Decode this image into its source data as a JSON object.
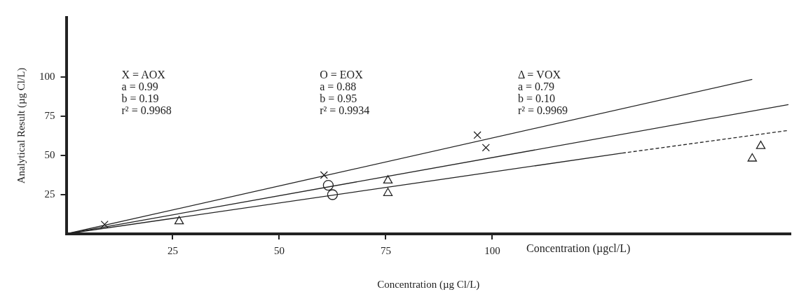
{
  "chart_data": {
    "type": "scatter",
    "xlabel": "Concentration (µg Cl/L)",
    "ylabel": "Analytical Result (µg Cl/L)",
    "xlim": [
      0,
      170
    ],
    "ylim": [
      0,
      138
    ],
    "xticks": [
      25,
      50,
      75,
      100
    ],
    "yticks": [
      25,
      50,
      75,
      100
    ],
    "grid": false,
    "legend": false,
    "annotations": [
      "X = AOX\na = 0.99\nb = 0.19\nr² = 0.9968",
      "O = EOX\na = 0.88\nb = 0.95\nr² = 0.9934",
      "Δ = VOX\na = 0.79\nb = 0.10\nr² = 0.9969",
      "Concentration (µgcl/L)"
    ],
    "series": [
      {
        "marker": "cross",
        "color": "#222222",
        "x": [
          9,
          60.5,
          96.5,
          98.5
        ],
        "values": [
          6,
          37.5,
          63,
          55
        ]
      },
      {
        "marker": "circle",
        "color": "#222222",
        "x": [
          61.5,
          62.5
        ],
        "values": [
          31,
          25
        ]
      },
      {
        "marker": "triangle",
        "color": "#222222",
        "x": [
          26.5,
          75.5,
          75.5,
          161,
          163
        ],
        "values": [
          8,
          34,
          26,
          48,
          56
        ]
      },
      {
        "type": "line",
        "marker": "none",
        "line_style": "solid",
        "color": "#222222",
        "x": [
          0,
          161
        ],
        "values": [
          0,
          98.5
        ]
      },
      {
        "type": "line",
        "marker": "none",
        "line_style": "solid",
        "color": "#222222",
        "x": [
          0,
          169.5
        ],
        "values": [
          0,
          82.5
        ]
      },
      {
        "type": "line",
        "marker": "none",
        "line_style": "solid",
        "color": "#222222",
        "x": [
          0,
          130.5
        ],
        "values": [
          0,
          51.5
        ]
      },
      {
        "type": "line",
        "marker": "none",
        "line_style": "dashed",
        "color": "#222222",
        "x": [
          130.5,
          169.5
        ],
        "values": [
          51.5,
          66
        ]
      }
    ]
  }
}
